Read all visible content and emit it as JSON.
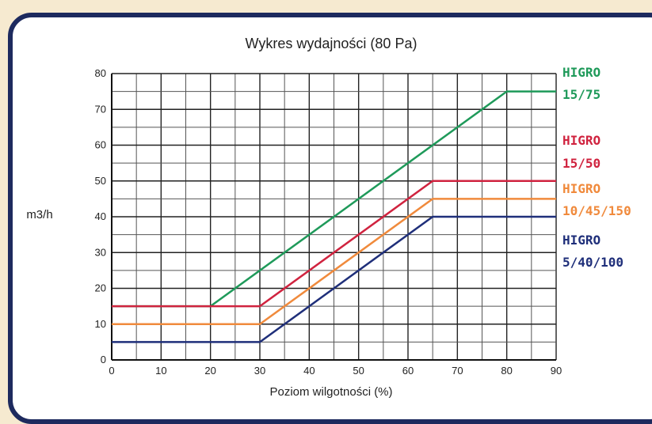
{
  "chart_data": {
    "type": "line",
    "title": "Wykres wydajności (80 Pa)",
    "xlabel": "Poziom wilgotności (%)",
    "ylabel": "m3/h",
    "xlim": [
      0,
      90
    ],
    "ylim": [
      0,
      80
    ],
    "x_ticks": [
      "0",
      "10",
      "20",
      "30",
      "40",
      "50",
      "60",
      "70",
      "80",
      "90"
    ],
    "y_ticks": [
      "0",
      "10",
      "20",
      "30",
      "40",
      "50",
      "60",
      "70",
      "80"
    ],
    "grid": true,
    "legend_placement": "right",
    "series": [
      {
        "name": "HIGRO 15/75",
        "label_lines": [
          "HIGRO",
          "15/75"
        ],
        "color": "#1f9a5a",
        "points": [
          [
            0,
            15
          ],
          [
            20,
            15
          ],
          [
            80,
            75
          ],
          [
            90,
            75
          ]
        ]
      },
      {
        "name": "HIGRO 15/50",
        "label_lines": [
          "HIGRO",
          "15/50"
        ],
        "color": "#d0233f",
        "points": [
          [
            0,
            15
          ],
          [
            30,
            15
          ],
          [
            65,
            50
          ],
          [
            90,
            50
          ]
        ]
      },
      {
        "name": "HIGRO 10/45/150",
        "label_lines": [
          "HIGRO",
          "10/45/150"
        ],
        "color": "#f08a3c",
        "points": [
          [
            0,
            10
          ],
          [
            30,
            10
          ],
          [
            65,
            45
          ],
          [
            90,
            45
          ]
        ]
      },
      {
        "name": "HIGRO 5/40/100",
        "label_lines": [
          "HIGRO",
          "5/40/100"
        ],
        "color": "#1f2f7a",
        "points": [
          [
            0,
            5
          ],
          [
            30,
            5
          ],
          [
            65,
            40
          ],
          [
            90,
            40
          ]
        ]
      }
    ]
  }
}
